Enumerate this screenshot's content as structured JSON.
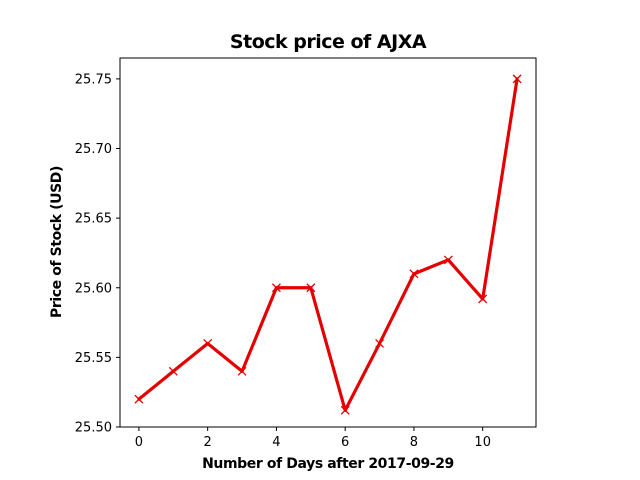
{
  "chart_data": {
    "type": "line",
    "title": "Stock price of AJXA",
    "xlabel": "Number of Days after 2017-09-29",
    "ylabel": "Price of Stock (USD)",
    "x": [
      0,
      1,
      2,
      3,
      4,
      5,
      6,
      7,
      8,
      9,
      10,
      11
    ],
    "series": [
      {
        "values": [
          25.52,
          25.54,
          25.56,
          25.54,
          25.6,
          25.6,
          25.512,
          25.56,
          25.61,
          25.62,
          25.592,
          25.75
        ],
        "color": "#e50000",
        "marker": "x"
      }
    ],
    "xlim": [
      -0.55,
      11.55
    ],
    "ylim": [
      25.5,
      25.765
    ],
    "xticks": [
      0,
      2,
      4,
      6,
      8,
      10
    ],
    "xtick_labels": [
      "0",
      "2",
      "4",
      "6",
      "8",
      "10"
    ],
    "yticks": [
      25.5,
      25.55,
      25.6,
      25.65,
      25.7,
      25.75
    ],
    "ytick_labels": [
      "25.50",
      "25.55",
      "25.60",
      "25.65",
      "25.70",
      "25.75"
    ],
    "grid": false,
    "legend": false
  }
}
